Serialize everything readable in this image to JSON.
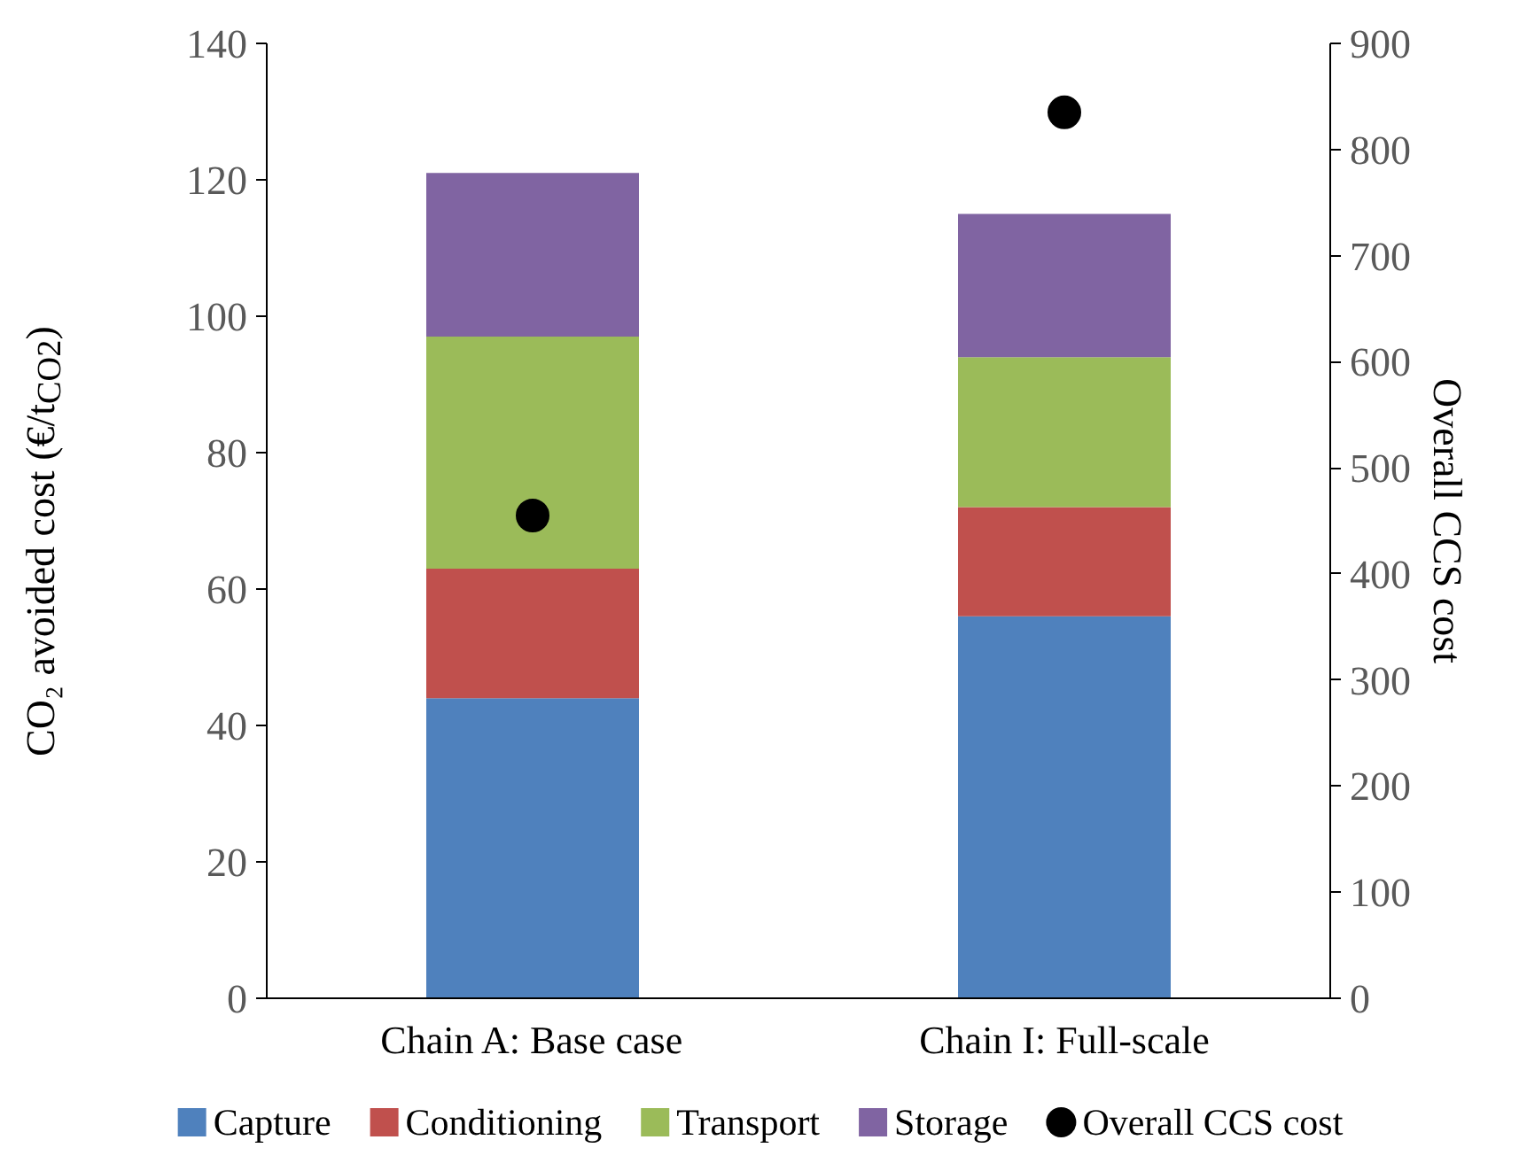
{
  "chart_data": {
    "type": "bar",
    "stacked": true,
    "categories": [
      "Chain A: Base case",
      "Chain I: Full-scale"
    ],
    "ylabel": "CO₂ avoided cost (€/t$_{CO2}$)",
    "y2label": "Overall CCS cost",
    "ylim": [
      0,
      140
    ],
    "yticks": [
      0,
      20,
      40,
      60,
      80,
      100,
      120,
      140
    ],
    "y2lim": [
      0,
      900
    ],
    "y2ticks": [
      0,
      100,
      200,
      300,
      400,
      500,
      600,
      700,
      800,
      900
    ],
    "grid": false,
    "legend": "bottom",
    "marker": "circle",
    "series": [
      {
        "name": "Capture",
        "color": "#4f81bd",
        "values": [
          44,
          56
        ]
      },
      {
        "name": "Conditioning",
        "color": "#c0504d",
        "values": [
          19,
          16
        ]
      },
      {
        "name": "Transport",
        "color": "#9bbb59",
        "values": [
          34,
          22
        ]
      },
      {
        "name": "Storage",
        "color": "#8064a2",
        "values": [
          24,
          21
        ]
      },
      {
        "name": "Overall CCS cost",
        "color": "#000000",
        "type": "scatter",
        "axis": "y2",
        "values": [
          455,
          835
        ]
      }
    ]
  }
}
